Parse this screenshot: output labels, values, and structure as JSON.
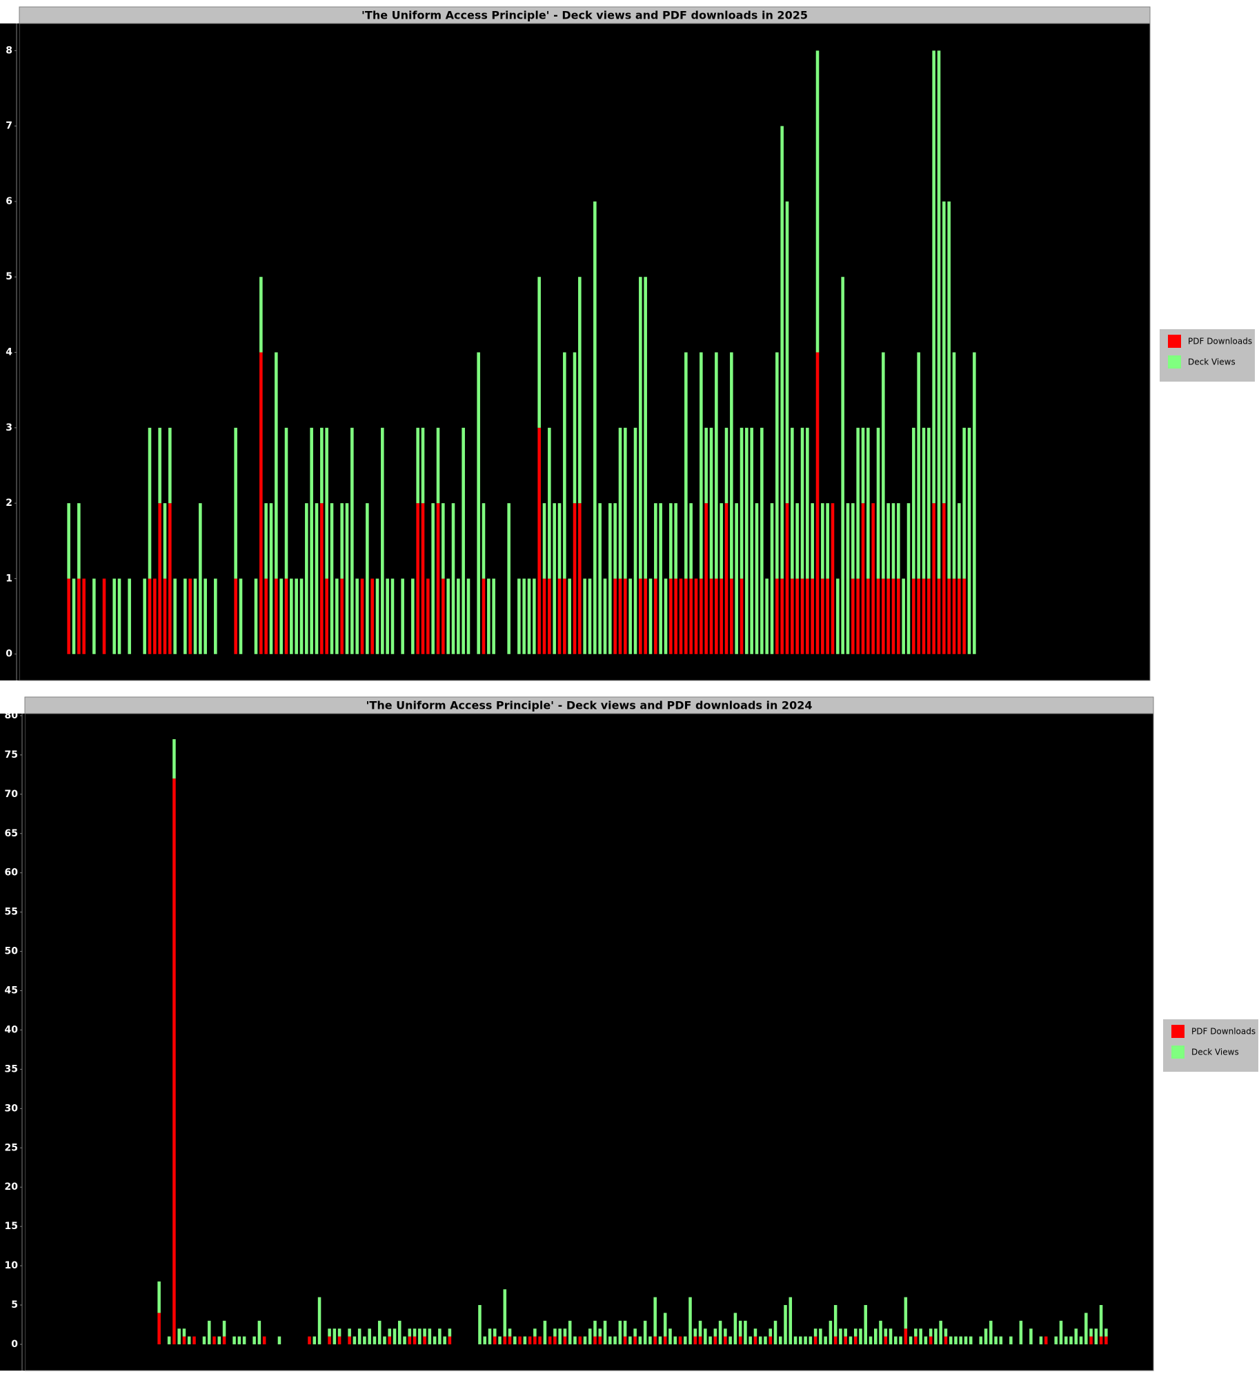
{
  "chart_data": [
    {
      "type": "bar",
      "stacked": true,
      "title": "'The Uniform Access Principle' - Deck views and PDF downloads in 2025",
      "ylim": [
        -0.35,
        8.36
      ],
      "yticks": [
        0,
        1,
        2,
        3,
        4,
        5,
        6,
        7,
        8
      ],
      "grid": false,
      "legend": "right",
      "series": [
        {
          "name": "PDF Downloads",
          "color": "#ff0000",
          "values": [
            1,
            0,
            1,
            1,
            0,
            0,
            0,
            1,
            0,
            0,
            0,
            0,
            0,
            0,
            0,
            0,
            1,
            1,
            2,
            1,
            2,
            0,
            0,
            0,
            1,
            0,
            0,
            0,
            0,
            0,
            0,
            0,
            0,
            1,
            0,
            0,
            0,
            0,
            4,
            1,
            0,
            1,
            0,
            1,
            0,
            0,
            0,
            0,
            0,
            0,
            2,
            1,
            0,
            0,
            1,
            0,
            0,
            0,
            1,
            0,
            1,
            0,
            0,
            0,
            0,
            0,
            0,
            0,
            0,
            2,
            2,
            1,
            0,
            2,
            1,
            0,
            0,
            0,
            0,
            0,
            0,
            0,
            1,
            0,
            0,
            0,
            0,
            0,
            0,
            0,
            0,
            0,
            0,
            3,
            1,
            1,
            0,
            1,
            1,
            0,
            2,
            2,
            0,
            0,
            0,
            0,
            0,
            0,
            1,
            1,
            1,
            0,
            0,
            1,
            1,
            0,
            1,
            0,
            0,
            1,
            1,
            1,
            1,
            1,
            1,
            1,
            2,
            1,
            1,
            1,
            2,
            1,
            0,
            1,
            0,
            0,
            0,
            0,
            0,
            0,
            1,
            1,
            2,
            1,
            1,
            1,
            1,
            1,
            4,
            1,
            1,
            2,
            0,
            0,
            0,
            1,
            1,
            2,
            1,
            2,
            1,
            1,
            1,
            1,
            1,
            0,
            0,
            1,
            1,
            1,
            1,
            2,
            1,
            2,
            1,
            1,
            1,
            1,
            0,
            0
          ]
        },
        {
          "name": "Deck Views",
          "color": "#80ff80",
          "values": [
            1,
            1,
            1,
            0,
            0,
            1,
            0,
            0,
            0,
            1,
            1,
            0,
            1,
            0,
            0,
            1,
            2,
            0,
            1,
            1,
            1,
            1,
            0,
            1,
            0,
            1,
            2,
            1,
            0,
            1,
            0,
            0,
            0,
            2,
            1,
            0,
            0,
            1,
            1,
            1,
            2,
            3,
            1,
            2,
            1,
            1,
            1,
            2,
            3,
            2,
            1,
            2,
            2,
            1,
            1,
            2,
            3,
            1,
            0,
            2,
            0,
            1,
            3,
            1,
            1,
            0,
            1,
            0,
            1,
            1,
            1,
            0,
            2,
            1,
            1,
            1,
            2,
            1,
            3,
            1,
            0,
            4,
            1,
            1,
            1,
            0,
            0,
            2,
            0,
            1,
            1,
            1,
            1,
            2,
            1,
            2,
            2,
            1,
            3,
            1,
            2,
            3,
            1,
            1,
            6,
            2,
            1,
            2,
            1,
            2,
            2,
            1,
            3,
            4,
            4,
            1,
            1,
            2,
            1,
            1,
            1,
            0,
            3,
            1,
            0,
            3,
            1,
            2,
            3,
            1,
            1,
            3,
            2,
            2,
            3,
            3,
            2,
            3,
            1,
            2,
            3,
            6,
            4,
            2,
            1,
            2,
            2,
            1,
            4,
            1,
            1,
            0,
            1,
            5,
            2,
            1,
            2,
            1,
            2,
            0,
            2,
            3,
            1,
            1,
            1,
            1,
            2,
            2,
            3,
            2,
            2,
            6,
            7,
            4,
            5,
            3,
            1,
            2,
            3,
            4
          ]
        }
      ]
    },
    {
      "type": "bar",
      "stacked": true,
      "title": "'The Uniform Access Principle' - Deck views and PDF downloads in 2024",
      "ylim": [
        -3.34,
        80.26
      ],
      "yticks": [
        0,
        5,
        10,
        15,
        20,
        25,
        30,
        35,
        40,
        45,
        50,
        55,
        60,
        65,
        70,
        75,
        80
      ],
      "grid": false,
      "legend": "right",
      "series": [
        {
          "name": "PDF Downloads",
          "color": "#ff0000",
          "values": [
            4,
            0,
            0,
            72,
            0,
            1,
            0,
            1,
            0,
            0,
            0,
            1,
            0,
            1,
            0,
            0,
            0,
            0,
            0,
            0,
            0,
            1,
            0,
            0,
            0,
            0,
            0,
            0,
            0,
            0,
            1,
            0,
            0,
            0,
            1,
            0,
            1,
            0,
            1,
            0,
            0,
            0,
            0,
            0,
            0,
            0,
            1,
            0,
            0,
            0,
            1,
            1,
            0,
            1,
            0,
            0,
            0,
            0,
            1,
            0,
            0,
            0,
            0,
            0,
            0,
            0,
            0,
            1,
            0,
            1,
            1,
            0,
            1,
            0,
            1,
            1,
            1,
            0,
            1,
            1,
            0,
            1,
            0,
            0,
            1,
            0,
            0,
            1,
            1,
            0,
            0,
            0,
            0,
            1,
            0,
            1,
            0,
            0,
            0,
            1,
            0,
            1,
            0,
            0,
            1,
            0,
            0,
            1,
            1,
            0,
            0,
            1,
            0,
            1,
            0,
            0,
            1,
            0,
            0,
            1,
            0,
            0,
            1,
            0,
            0,
            0,
            0,
            0,
            0,
            0,
            0,
            1,
            0,
            0,
            0,
            1,
            0,
            1,
            0,
            1,
            0,
            0,
            0,
            0,
            0,
            1,
            0,
            0,
            0,
            2,
            0,
            1,
            0,
            0,
            1,
            0,
            0,
            1,
            0,
            0,
            0,
            0,
            0,
            0,
            0,
            0,
            0,
            0,
            0,
            0,
            0,
            0,
            0,
            0,
            0,
            0,
            0,
            1,
            0,
            0,
            0,
            0,
            0,
            0,
            0,
            0,
            1,
            0,
            1,
            1
          ]
        },
        {
          "name": "Deck Views",
          "color": "#80ff80",
          "values": [
            4,
            0,
            1,
            5,
            2,
            1,
            1,
            0,
            0,
            1,
            3,
            0,
            1,
            2,
            0,
            1,
            1,
            1,
            0,
            1,
            3,
            0,
            0,
            0,
            1,
            0,
            0,
            0,
            0,
            0,
            0,
            1,
            6,
            0,
            1,
            2,
            1,
            0,
            1,
            1,
            2,
            1,
            2,
            1,
            3,
            1,
            1,
            2,
            3,
            1,
            1,
            1,
            2,
            1,
            2,
            1,
            2,
            1,
            1,
            0,
            0,
            0,
            0,
            0,
            5,
            1,
            2,
            1,
            1,
            6,
            1,
            1,
            0,
            1,
            0,
            1,
            0,
            3,
            0,
            1,
            2,
            1,
            3,
            1,
            0,
            1,
            2,
            2,
            1,
            3,
            1,
            1,
            3,
            2,
            1,
            1,
            1,
            3,
            1,
            5,
            1,
            3,
            2,
            1,
            0,
            1,
            6,
            1,
            2,
            2,
            1,
            1,
            3,
            1,
            1,
            4,
            2,
            3,
            1,
            1,
            1,
            1,
            1,
            3,
            1,
            5,
            6,
            1,
            1,
            1,
            1,
            1,
            2,
            1,
            3,
            4,
            2,
            1,
            1,
            1,
            2,
            5,
            1,
            2,
            3,
            1,
            2,
            1,
            1,
            4,
            1,
            1,
            2,
            1,
            1,
            2,
            3,
            1,
            1,
            1,
            1,
            1,
            1,
            0,
            1,
            2,
            3,
            1,
            1,
            0,
            1,
            0,
            3,
            0,
            2,
            0,
            1,
            0,
            0,
            1,
            3,
            1,
            1,
            2,
            1,
            4,
            1,
            2,
            4,
            1
          ]
        }
      ]
    }
  ]
}
